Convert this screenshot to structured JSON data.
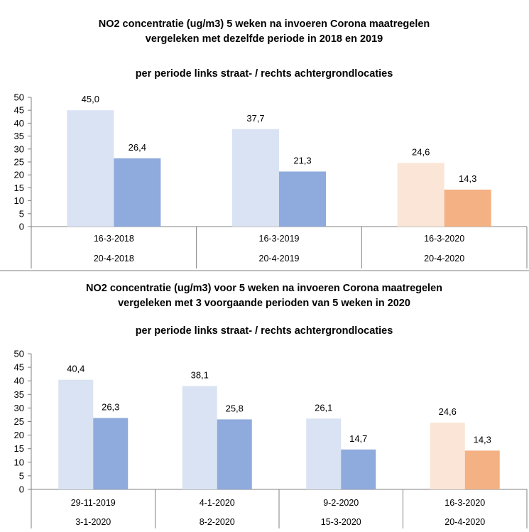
{
  "charts": [
    {
      "type": "bar",
      "title_lines": [
        "NO2 concentratie (ug/m3) 5 weken na invoeren Corona maatregelen",
        "vergeleken met dezelfde periode in 2018 en 2019"
      ],
      "subtitle": "per periode links straat- / rechts achtergrondlocaties",
      "categories": [
        [
          "16-3-2018",
          "20-4-2018"
        ],
        [
          "16-3-2019",
          "20-4-2019"
        ],
        [
          "16-3-2020",
          "20-4-2020"
        ]
      ],
      "series": [
        {
          "values": [
            45.0,
            37.7,
            24.6
          ],
          "labels": [
            "45,0",
            "37,7",
            "24,6"
          ],
          "colors": [
            "#dae3f3",
            "#dae3f3",
            "#fbe5d6"
          ]
        },
        {
          "values": [
            26.4,
            21.3,
            14.3
          ],
          "labels": [
            "26,4",
            "21,3",
            "14,3"
          ],
          "colors": [
            "#8faadc",
            "#8faadc",
            "#f4b183"
          ]
        }
      ],
      "yticks": [
        "0",
        "5",
        "10",
        "15",
        "20",
        "25",
        "30",
        "35",
        "40",
        "45",
        "50"
      ],
      "ylim": [
        0,
        50
      ],
      "grid": false
    },
    {
      "type": "bar",
      "title_lines": [
        "NO2 concentratie (ug/m3) voor 5 weken na invoeren Corona maatregelen",
        "vergeleken met 3 voorgaande perioden van 5 weken in 2020"
      ],
      "subtitle": "per periode links straat- / rechts achtergrondlocaties",
      "categories": [
        [
          "29-11-2019",
          "3-1-2020"
        ],
        [
          "4-1-2020",
          "8-2-2020"
        ],
        [
          "9-2-2020",
          "15-3-2020"
        ],
        [
          "16-3-2020",
          "20-4-2020"
        ]
      ],
      "series": [
        {
          "values": [
            40.4,
            38.1,
            26.1,
            24.6
          ],
          "labels": [
            "40,4",
            "38,1",
            "26,1",
            "24,6"
          ],
          "colors": [
            "#dae3f3",
            "#dae3f3",
            "#dae3f3",
            "#fbe5d6"
          ]
        },
        {
          "values": [
            26.3,
            25.8,
            14.7,
            14.3
          ],
          "labels": [
            "26,3",
            "25,8",
            "14,7",
            "14,3"
          ],
          "colors": [
            "#8faadc",
            "#8faadc",
            "#8faadc",
            "#f4b183"
          ]
        }
      ],
      "yticks": [
        "0",
        "5",
        "10",
        "15",
        "20",
        "25",
        "30",
        "35",
        "40",
        "45",
        "50"
      ],
      "ylim": [
        0,
        50
      ],
      "grid": false
    }
  ]
}
